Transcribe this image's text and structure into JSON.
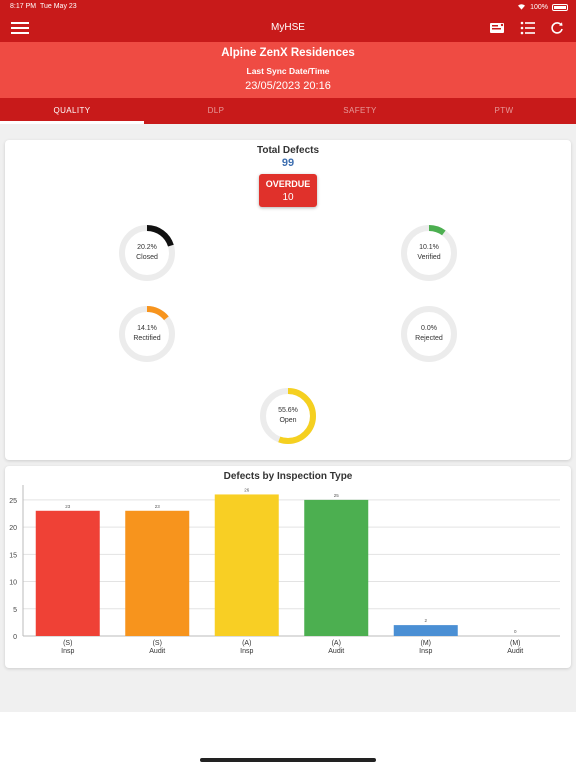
{
  "status": {
    "time": "8:17 PM",
    "date": "Tue May 23",
    "battery": "100%"
  },
  "app": {
    "title": "MyHSE"
  },
  "header": {
    "project": "Alpine ZenX Residences",
    "sync_label": "Last Sync Date/Time",
    "sync_date": "23/05/2023 20:16"
  },
  "tabs": [
    {
      "label": "QUALITY"
    },
    {
      "label": "DLP"
    },
    {
      "label": "SAFETY"
    },
    {
      "label": "PTW"
    }
  ],
  "summary": {
    "total_label": "Total Defects",
    "total_value": "99",
    "overdue_label": "OVERDUE",
    "overdue_value": "10",
    "donuts": [
      {
        "percent_text": "20.2%",
        "label": "Closed",
        "fraction": 0.202,
        "color": "#111111"
      },
      {
        "percent_text": "10.1%",
        "label": "Verified",
        "fraction": 0.101,
        "color": "#4caf50"
      },
      {
        "percent_text": "14.1%",
        "label": "Rectified",
        "fraction": 0.141,
        "color": "#f7941d"
      },
      {
        "percent_text": "0.0%",
        "label": "Rejected",
        "fraction": 0.0,
        "color": "#999999"
      },
      {
        "percent_text": "55.6%",
        "label": "Open",
        "fraction": 0.556,
        "color": "#f5d020"
      }
    ]
  },
  "chart_data": {
    "type": "bar",
    "title": "Defects by Inspection Type",
    "categories": [
      [
        "(S)",
        "Insp"
      ],
      [
        "(S)",
        "Audit"
      ],
      [
        "(A)",
        "Insp"
      ],
      [
        "(A)",
        "Audit"
      ],
      [
        "(M)",
        "Insp"
      ],
      [
        "(M)",
        "Audit"
      ]
    ],
    "values": [
      23,
      23,
      26,
      25,
      2,
      0
    ],
    "colors": [
      "#ef4136",
      "#f7941d",
      "#f8cf24",
      "#4caf50",
      "#4a8fd4",
      "#9e9e9e"
    ],
    "ylim": [
      0,
      27
    ],
    "yticks": [
      0,
      5,
      10,
      15,
      20,
      25
    ],
    "grid": true
  }
}
